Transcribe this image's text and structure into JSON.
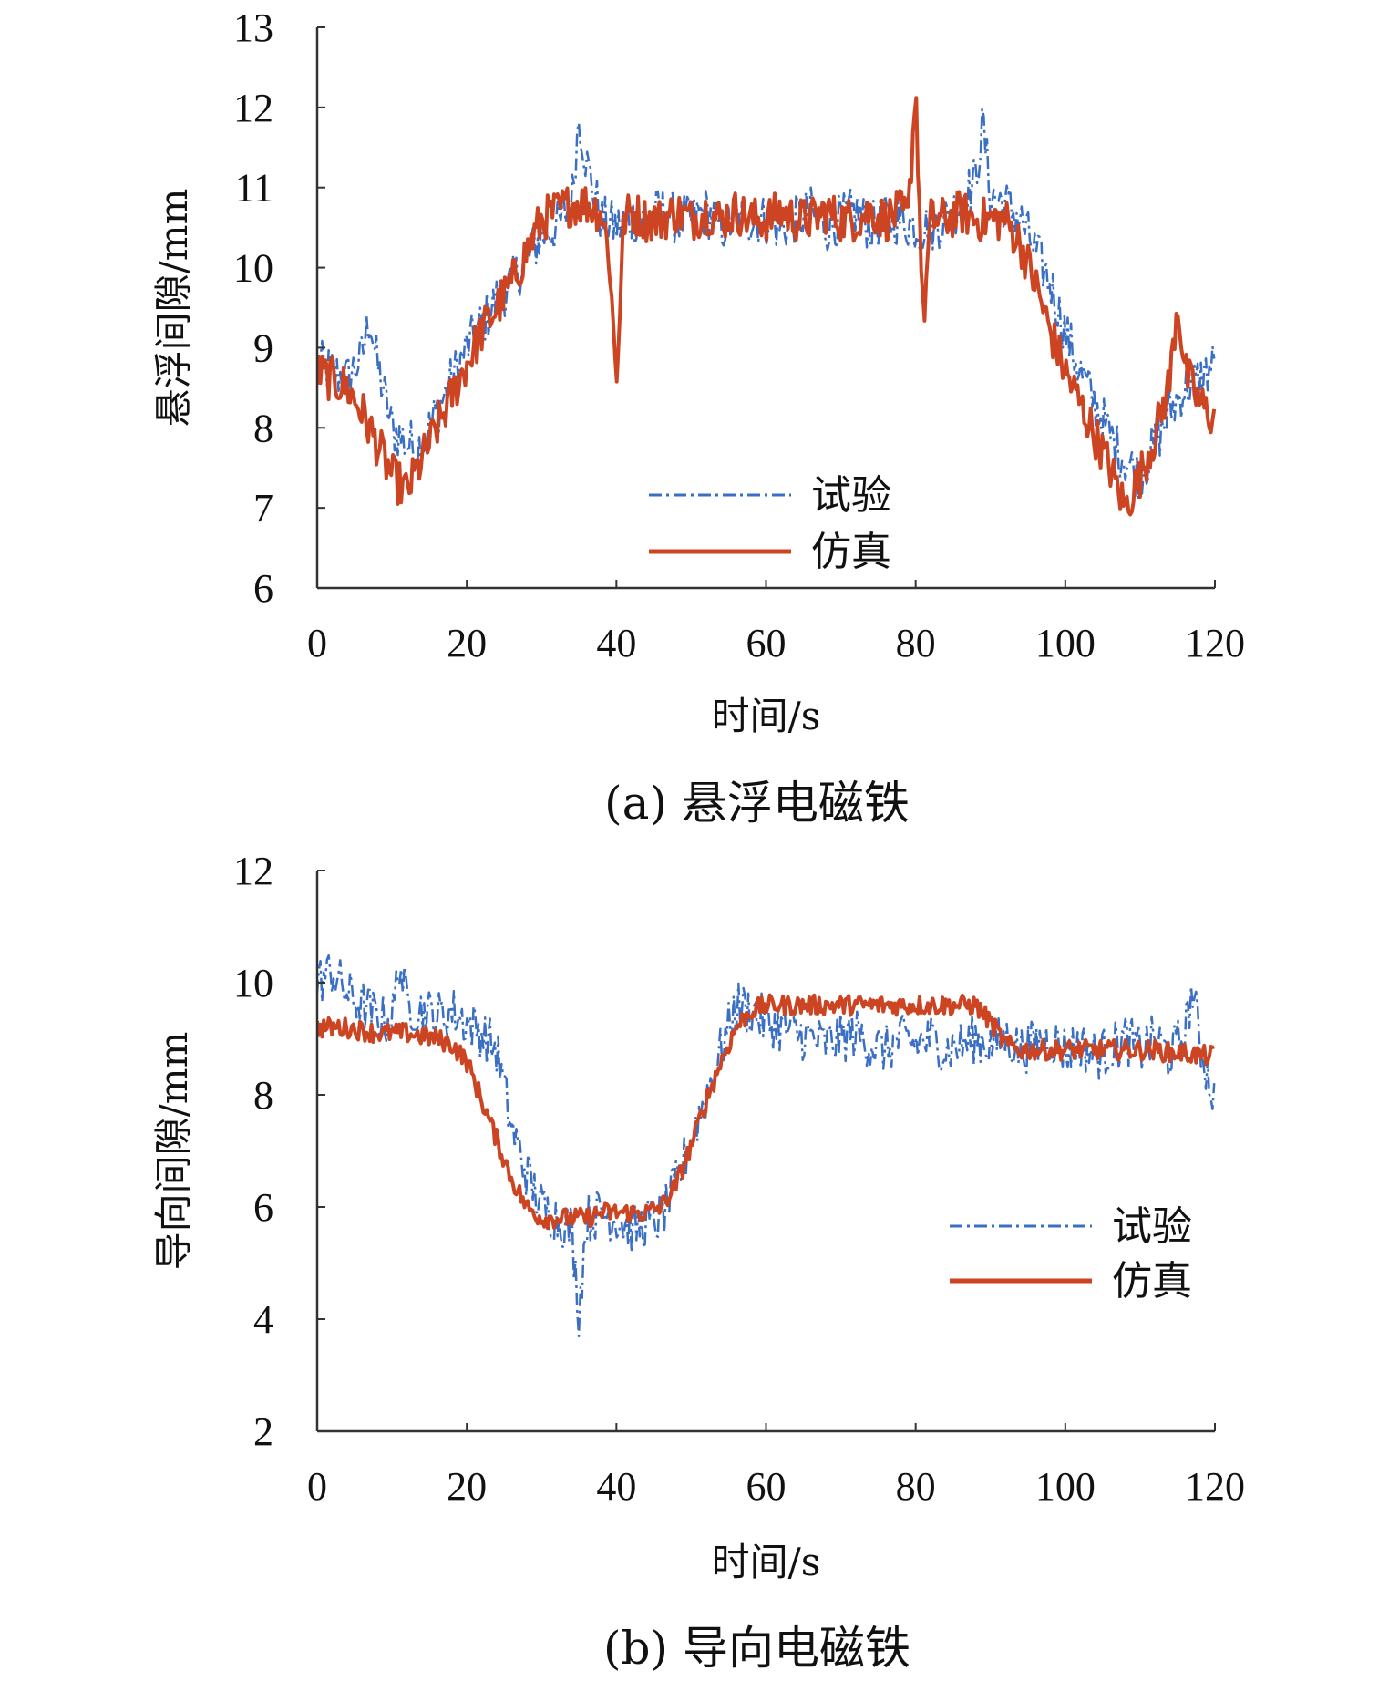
{
  "colors": {
    "test": "#3a6fc4",
    "sim": "#cc4422",
    "axis": "#333333"
  },
  "chart_data": [
    {
      "type": "line",
      "caption": "(a) 悬浮电磁铁",
      "xlabel": "时间/s",
      "ylabel": "悬浮间隙/mm",
      "xlim": [
        0,
        120
      ],
      "ylim": [
        6,
        13
      ],
      "xticks": [
        "0",
        "20",
        "40",
        "60",
        "80",
        "100",
        "120"
      ],
      "yticks": [
        "6",
        "7",
        "8",
        "9",
        "10",
        "11",
        "12",
        "13"
      ],
      "legend_position": "bottom-center",
      "series": [
        {
          "name": "试验",
          "style": "dash-dot",
          "x": [
            0,
            2,
            4,
            6,
            7,
            8,
            10,
            12,
            14,
            16,
            18,
            20,
            22,
            24,
            26,
            28,
            30,
            32,
            34,
            35,
            36,
            38,
            40,
            42,
            44,
            46,
            48,
            50,
            52,
            54,
            56,
            58,
            60,
            62,
            64,
            66,
            68,
            70,
            72,
            74,
            76,
            78,
            80,
            82,
            84,
            86,
            88,
            89,
            90,
            92,
            94,
            96,
            98,
            100,
            102,
            104,
            106,
            108,
            110,
            112,
            114,
            116,
            118,
            120
          ],
          "y": [
            8.8,
            8.7,
            8.6,
            8.9,
            9.4,
            8.8,
            8.0,
            7.8,
            7.8,
            8.2,
            8.6,
            9.0,
            9.3,
            9.6,
            9.8,
            10.1,
            10.4,
            10.5,
            10.8,
            11.9,
            11.3,
            10.6,
            10.5,
            10.6,
            10.6,
            10.7,
            10.6,
            10.6,
            10.7,
            10.5,
            10.6,
            10.6,
            10.6,
            10.5,
            10.6,
            10.7,
            10.5,
            10.6,
            10.7,
            10.5,
            10.6,
            10.6,
            10.5,
            10.5,
            10.6,
            10.8,
            11.1,
            11.8,
            10.9,
            10.8,
            10.6,
            10.2,
            9.8,
            9.2,
            8.7,
            8.3,
            7.9,
            7.6,
            7.4,
            7.8,
            8.2,
            8.5,
            8.6,
            8.8
          ]
        },
        {
          "name": "仿真",
          "style": "solid",
          "x": [
            0,
            2,
            4,
            6,
            8,
            10,
            12,
            14,
            16,
            18,
            20,
            22,
            24,
            26,
            28,
            30,
            32,
            34,
            36,
            38,
            39,
            40,
            41,
            42,
            44,
            46,
            48,
            50,
            52,
            54,
            56,
            58,
            60,
            62,
            64,
            66,
            68,
            70,
            72,
            74,
            76,
            78,
            79,
            80,
            81,
            82,
            84,
            86,
            88,
            90,
            92,
            94,
            96,
            98,
            100,
            102,
            104,
            106,
            108,
            110,
            112,
            114,
            115,
            116,
            118,
            120
          ],
          "y": [
            8.7,
            8.6,
            8.5,
            8.2,
            7.8,
            7.4,
            7.2,
            7.6,
            8.0,
            8.4,
            8.8,
            9.2,
            9.5,
            9.8,
            10.2,
            10.6,
            10.7,
            10.8,
            10.8,
            10.7,
            10.2,
            8.6,
            10.6,
            10.7,
            10.6,
            10.6,
            10.7,
            10.6,
            10.7,
            10.6,
            10.7,
            10.6,
            10.6,
            10.7,
            10.6,
            10.6,
            10.7,
            10.6,
            10.6,
            10.7,
            10.6,
            10.7,
            10.6,
            12.3,
            9.3,
            10.6,
            10.6,
            10.7,
            10.6,
            10.6,
            10.6,
            10.3,
            9.8,
            9.2,
            8.7,
            8.3,
            7.9,
            7.5,
            7.0,
            7.4,
            7.9,
            8.6,
            9.6,
            8.7,
            8.3,
            8.1
          ]
        }
      ]
    },
    {
      "type": "line",
      "caption": "(b) 导向电磁铁",
      "xlabel": "时间/s",
      "ylabel": "导向间隙/mm",
      "xlim": [
        0,
        120
      ],
      "ylim": [
        2,
        12
      ],
      "xticks": [
        "0",
        "20",
        "40",
        "60",
        "80",
        "100",
        "120"
      ],
      "yticks": [
        "2",
        "4",
        "6",
        "8",
        "10",
        "12"
      ],
      "legend_position": "right",
      "series": [
        {
          "name": "试验",
          "style": "dash-dot",
          "x": [
            0,
            2,
            4,
            6,
            8,
            10,
            11,
            12,
            14,
            16,
            18,
            20,
            22,
            24,
            26,
            28,
            30,
            32,
            34,
            35,
            36,
            38,
            40,
            42,
            44,
            46,
            48,
            50,
            52,
            54,
            56,
            58,
            60,
            62,
            64,
            66,
            68,
            70,
            72,
            74,
            76,
            78,
            80,
            82,
            84,
            86,
            88,
            90,
            92,
            94,
            96,
            98,
            100,
            102,
            104,
            106,
            108,
            110,
            112,
            114,
            116,
            117,
            118,
            120
          ],
          "y": [
            10.0,
            10.2,
            9.8,
            9.6,
            9.4,
            9.3,
            10.4,
            9.6,
            9.5,
            9.4,
            9.5,
            9.3,
            9.1,
            8.8,
            7.4,
            6.6,
            6.0,
            5.8,
            5.6,
            4.1,
            5.8,
            5.9,
            5.8,
            5.6,
            5.7,
            5.8,
            6.4,
            7.2,
            8.0,
            8.8,
            9.6,
            9.5,
            9.3,
            9.2,
            9.1,
            9.0,
            8.9,
            9.0,
            9.1,
            8.9,
            8.8,
            9.0,
            8.9,
            9.0,
            8.8,
            8.9,
            9.0,
            8.9,
            9.0,
            8.8,
            8.9,
            9.0,
            8.8,
            8.9,
            8.7,
            8.8,
            9.0,
            8.8,
            9.0,
            8.7,
            9.1,
            9.9,
            8.9,
            7.9
          ]
        },
        {
          "name": "仿真",
          "style": "solid",
          "x": [
            0,
            2,
            4,
            6,
            8,
            10,
            12,
            14,
            16,
            18,
            20,
            22,
            24,
            26,
            28,
            30,
            32,
            34,
            36,
            38,
            40,
            42,
            44,
            46,
            48,
            50,
            52,
            54,
            56,
            58,
            60,
            62,
            64,
            66,
            68,
            70,
            72,
            74,
            76,
            78,
            80,
            82,
            84,
            86,
            88,
            90,
            92,
            94,
            96,
            98,
            100,
            102,
            104,
            106,
            108,
            110,
            112,
            114,
            116,
            118,
            120
          ],
          "y": [
            9.2,
            9.2,
            9.2,
            9.15,
            9.1,
            9.1,
            9.1,
            9.05,
            9.0,
            8.9,
            8.6,
            7.9,
            7.2,
            6.5,
            6.0,
            5.8,
            5.8,
            5.8,
            5.8,
            5.9,
            5.9,
            5.9,
            5.9,
            6.0,
            6.4,
            7.1,
            7.9,
            8.6,
            9.2,
            9.5,
            9.6,
            9.6,
            9.6,
            9.6,
            9.6,
            9.6,
            9.6,
            9.6,
            9.6,
            9.6,
            9.6,
            9.6,
            9.6,
            9.6,
            9.6,
            9.3,
            8.9,
            8.8,
            8.8,
            8.8,
            8.8,
            8.8,
            8.8,
            8.8,
            8.8,
            8.8,
            8.8,
            8.75,
            8.75,
            8.7,
            8.7
          ]
        }
      ]
    }
  ]
}
